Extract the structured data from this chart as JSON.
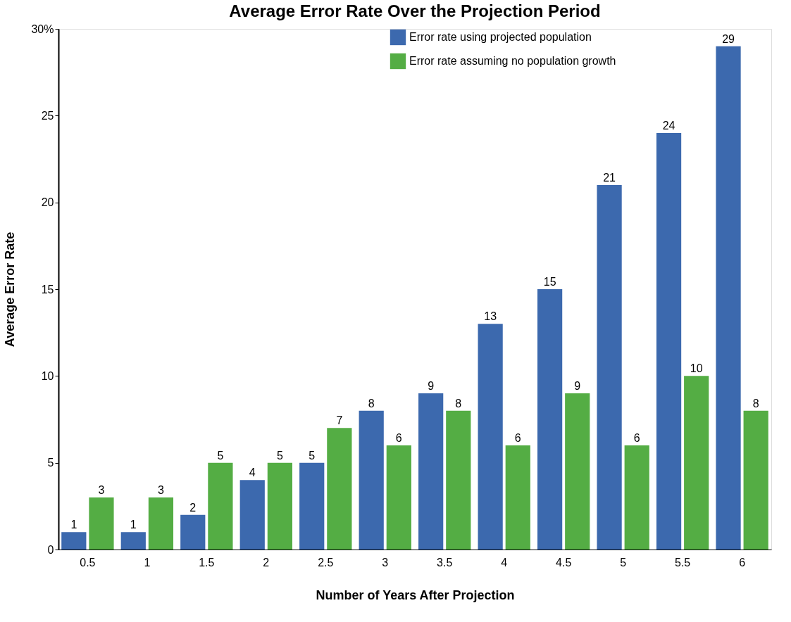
{
  "chart_data": {
    "type": "bar",
    "title": "Average Error Rate Over the Projection Period",
    "xlabel": "Number of Years After Projection",
    "ylabel": "Average Error Rate",
    "categories": [
      "0.5",
      "1",
      "1.5",
      "2",
      "2.5",
      "3",
      "3.5",
      "4",
      "4.5",
      "5",
      "5.5",
      "6"
    ],
    "series": [
      {
        "name": "Error rate using projected population",
        "color": "#3c69ae",
        "values": [
          1,
          1,
          2,
          4,
          5,
          8,
          9,
          13,
          15,
          21,
          24,
          29
        ]
      },
      {
        "name": "Error rate assuming no population growth",
        "color": "#54ad44",
        "values": [
          3,
          3,
          5,
          5,
          7,
          6,
          8,
          6,
          9,
          6,
          10,
          8
        ]
      }
    ],
    "ylim": [
      0,
      30
    ],
    "yticks": [
      0,
      5,
      10,
      15,
      20,
      25,
      {
        "value": 30,
        "label": "30%"
      }
    ],
    "data_labels": true,
    "grid": false,
    "legend": "top right"
  }
}
